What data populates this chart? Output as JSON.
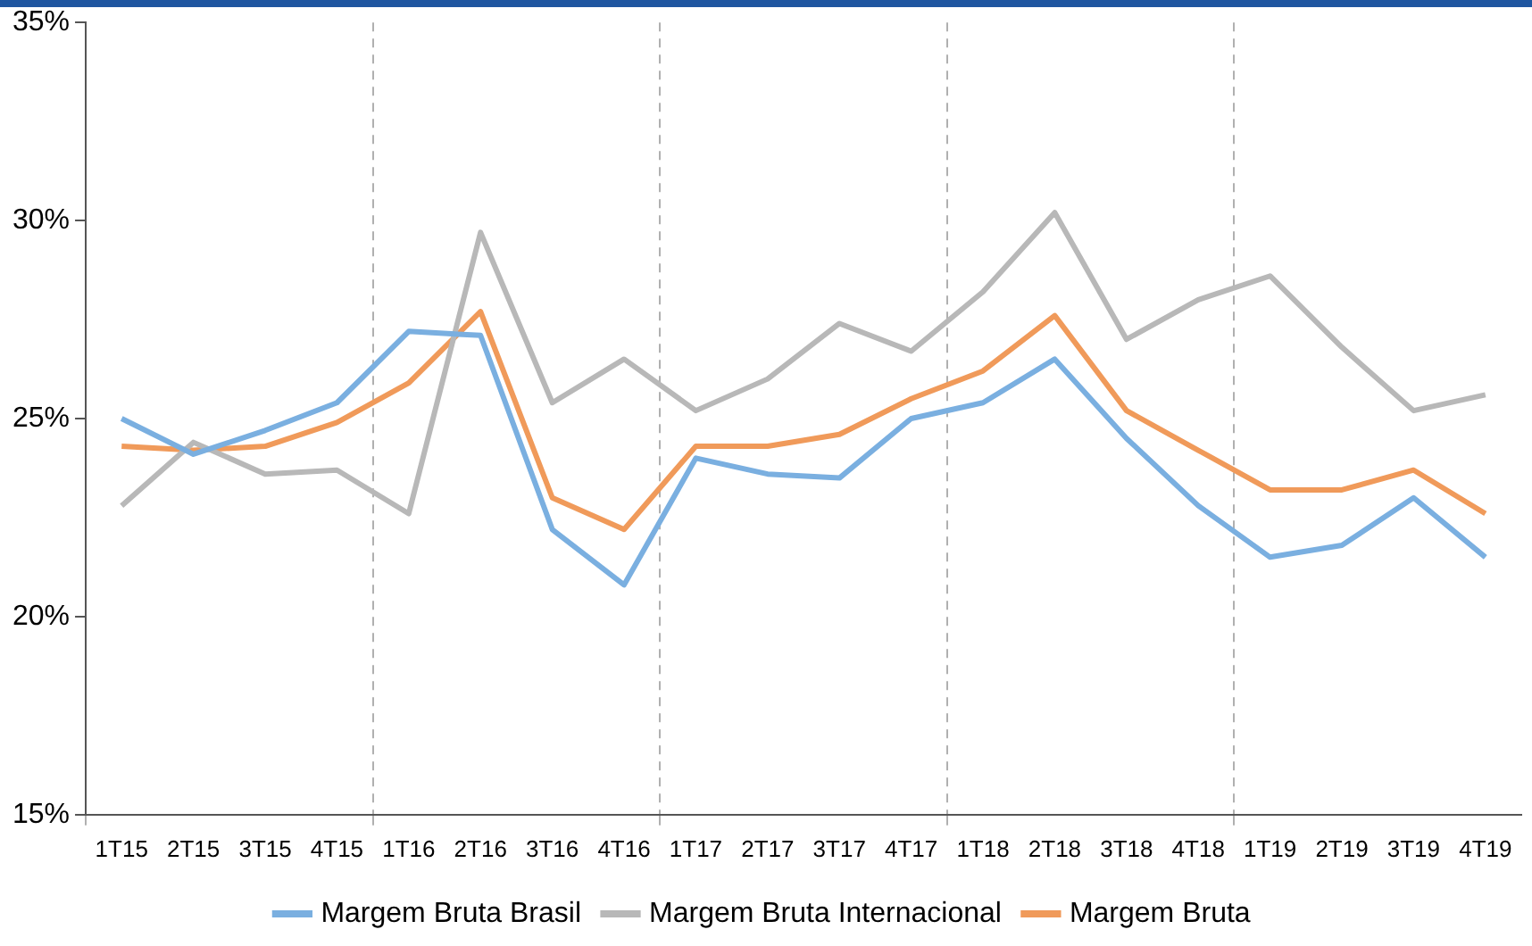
{
  "chart_data": {
    "type": "line",
    "categories": [
      "1T15",
      "2T15",
      "3T15",
      "4T15",
      "1T16",
      "2T16",
      "3T16",
      "4T16",
      "1T17",
      "2T17",
      "3T17",
      "4T17",
      "1T18",
      "2T18",
      "3T18",
      "4T18",
      "1T19",
      "2T19",
      "3T19",
      "4T19"
    ],
    "series": [
      {
        "name": "Margem Bruta Brasil",
        "color": "#7aafe0",
        "values": [
          25.0,
          24.1,
          24.7,
          25.4,
          27.2,
          27.1,
          22.2,
          20.8,
          24.0,
          23.6,
          23.5,
          25.0,
          25.4,
          26.5,
          24.5,
          22.8,
          21.5,
          21.8,
          23.0,
          21.5
        ]
      },
      {
        "name": "Margem Bruta Internacional",
        "color": "#b8b8b8",
        "values": [
          22.8,
          24.4,
          23.6,
          23.7,
          22.6,
          29.7,
          25.4,
          26.5,
          25.2,
          26.0,
          27.4,
          26.7,
          28.2,
          30.2,
          27.0,
          28.0,
          28.6,
          26.8,
          25.2,
          25.6
        ]
      },
      {
        "name": "Margem Bruta",
        "color": "#f09a5a",
        "values": [
          24.3,
          24.2,
          24.3,
          24.9,
          25.9,
          27.7,
          23.0,
          22.2,
          24.3,
          24.3,
          24.6,
          25.5,
          26.2,
          27.6,
          25.2,
          24.2,
          23.2,
          23.2,
          23.7,
          22.6
        ]
      }
    ],
    "ylim": [
      15,
      35
    ],
    "yticks": [
      {
        "value": 15,
        "label": "15%"
      },
      {
        "value": 20,
        "label": "20%"
      },
      {
        "value": 25,
        "label": "25%"
      },
      {
        "value": 30,
        "label": "30%"
      },
      {
        "value": 35,
        "label": "35%"
      }
    ],
    "grid": "x",
    "legend": "bottom",
    "marker": "none",
    "line_style": "solid"
  }
}
